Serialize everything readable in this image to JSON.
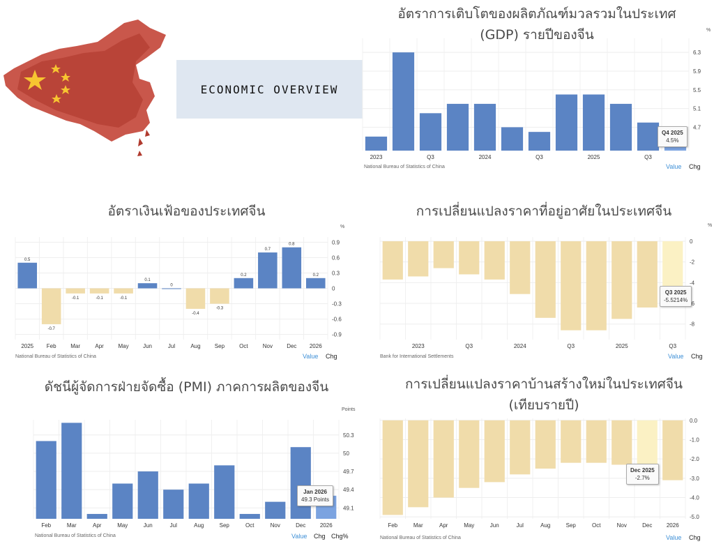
{
  "colors": {
    "blue": "#5b84c4",
    "beige": "#f0dcaa",
    "highlight_blue": "#7ba3e0",
    "highlight_beige": "#fbf1c4",
    "link": "#3d8fd6",
    "map": "#c0392b",
    "star": "#f7c531"
  },
  "banner": {
    "label": "ECONOMIC OVERVIEW"
  },
  "map": {
    "icon": "china-flag-map-icon"
  },
  "charts": [
    {
      "id": "gdp",
      "title_lines": [
        "อัตราการเติบโตของผลิตภัณฑ์มวลรวมในประเทศ",
        "(GDP) รายปีของจีน"
      ],
      "unit": "%",
      "source": "National Bureau of Statistics of China",
      "links": [
        "Value",
        "Chg"
      ],
      "tooltip": {
        "head": "Q4 2025",
        "val": "4.5%"
      }
    },
    {
      "id": "cpi",
      "title_lines": [
        "อัตราเงินเฟ้อของประเทศจีน"
      ],
      "unit": "%",
      "source": "National Bureau of Statistics of China",
      "links": [
        "Value",
        "Chg"
      ]
    },
    {
      "id": "house",
      "title_lines": [
        "การเปลี่ยนแปลงราคาที่อยู่อาศัยในประเทศจีน"
      ],
      "unit": "%",
      "source": "Bank for International Settlements",
      "links": [
        "Value",
        "Chg"
      ],
      "tooltip": {
        "head": "Q3 2025",
        "val": "-5.5214%"
      }
    },
    {
      "id": "pmi",
      "title_lines": [
        "ดัชนีผู้จัดการฝ่ายจัดซื้อ (PMI) ภาคการผลิตของจีน"
      ],
      "unit": "Points",
      "source": "National Bureau of Statistics of China",
      "links": [
        "Value",
        "Chg",
        "Chg%"
      ],
      "tooltip": {
        "head": "Jan 2026",
        "val": "49.3 Points"
      }
    },
    {
      "id": "newhome",
      "title_lines": [
        "การเปลี่ยนแปลงราคาบ้านสร้างใหม่ในประเทศจีน",
        "(เทียบรายปี)"
      ],
      "unit": "",
      "source": "National Bureau of Statistics of China",
      "links": [
        "Value",
        "Chg"
      ],
      "tooltip": {
        "head": "Dec 2025",
        "val": "-2.7%"
      }
    }
  ],
  "chart_data": [
    {
      "type": "bar",
      "id": "gdp",
      "values": [
        4.5,
        6.3,
        5.0,
        5.2,
        5.2,
        4.7,
        4.6,
        5.4,
        5.4,
        5.2,
        4.8,
        4.5
      ],
      "x_labels": [
        "2023",
        "",
        "Q3",
        "",
        "2024",
        "",
        "Q3",
        "",
        "2025",
        "",
        "Q3",
        ""
      ],
      "y_ticks": [
        4.7,
        5.1,
        5.5,
        5.9,
        6.3
      ],
      "ylim": [
        4.2,
        6.6
      ],
      "highlight_index": 11
    },
    {
      "type": "bar",
      "id": "cpi",
      "values": [
        0.5,
        -0.7,
        -0.1,
        -0.1,
        -0.1,
        0.1,
        0,
        -0.4,
        -0.3,
        0.2,
        0.7,
        0.8,
        0.2
      ],
      "data_labels": [
        "0.5",
        "-0.7",
        "-0.1",
        "-0.1",
        "-0.1",
        "0.1",
        "0",
        "-0.4",
        "-0.3",
        "0.2",
        "0.7",
        "0.8",
        "0.2"
      ],
      "x_labels": [
        "2025",
        "Feb",
        "Mar",
        "Apr",
        "May",
        "Jun",
        "Jul",
        "Aug",
        "Sep",
        "Oct",
        "Nov",
        "Dec",
        "2026"
      ],
      "y_ticks": [
        -0.9,
        -0.6,
        -0.3,
        0.0,
        0.3,
        0.6,
        0.9
      ],
      "ylim": [
        -1.0,
        1.0
      ]
    },
    {
      "type": "bar",
      "id": "house",
      "values": [
        -3.7,
        -3.4,
        -2.6,
        -3.2,
        -3.7,
        -5.1,
        -7.4,
        -8.6,
        -8.6,
        -7.5,
        -6.4,
        -5.5214
      ],
      "x_labels": [
        "",
        "2023",
        "",
        "Q3",
        "",
        "2024",
        "",
        "Q3",
        "",
        "2025",
        "",
        "Q3"
      ],
      "y_ticks": [
        0,
        -2,
        -4,
        -6,
        -8
      ],
      "ylim": [
        -9.5,
        0.4
      ],
      "highlight_index": 11
    },
    {
      "type": "bar",
      "id": "pmi",
      "values": [
        50.2,
        50.5,
        49.0,
        49.5,
        49.7,
        49.4,
        49.5,
        49.8,
        49.0,
        49.2,
        50.1,
        49.3
      ],
      "x_labels": [
        "Feb",
        "Mar",
        "Apr",
        "May",
        "Jun",
        "Jul",
        "Aug",
        "Sep",
        "Oct",
        "Nov",
        "Dec",
        "2026"
      ],
      "y_ticks": [
        49.1,
        49.4,
        49.7,
        50.0,
        50.3
      ],
      "ylim": [
        48.92,
        50.55
      ],
      "highlight_index": 11
    },
    {
      "type": "bar",
      "id": "newhome",
      "values": [
        -4.9,
        -4.5,
        -4.0,
        -3.5,
        -3.2,
        -2.8,
        -2.5,
        -2.2,
        -2.2,
        -2.3,
        -2.7,
        -3.1
      ],
      "x_labels": [
        "Feb",
        "Mar",
        "Apr",
        "May",
        "Jun",
        "Jul",
        "Aug",
        "Sep",
        "Oct",
        "Nov",
        "Dec",
        "2026"
      ],
      "y_ticks": [
        0.0,
        -1.0,
        -2.0,
        -3.0,
        -4.0,
        -5.0
      ],
      "ylim": [
        -5.1,
        0.1
      ],
      "highlight_index": 10
    }
  ]
}
